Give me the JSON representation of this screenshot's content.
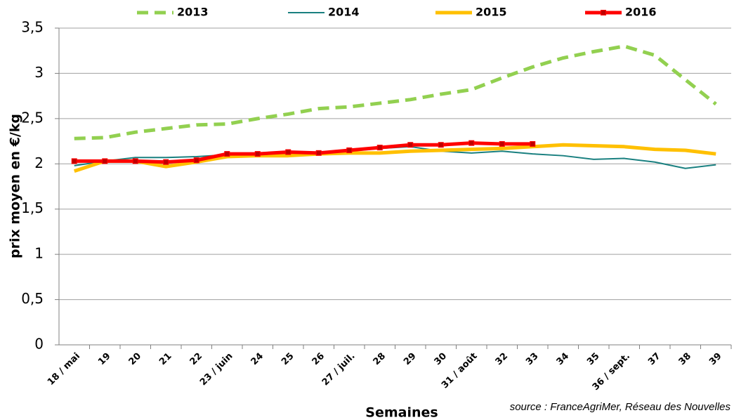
{
  "chart_data": {
    "type": "line",
    "y_label": "prix moyen en €/kg",
    "x_label": "Semaines",
    "source": "source : FranceAgriMer, Réseau des Nouvelles",
    "categories": [
      "18 / mai",
      "19",
      "20",
      "21",
      "22",
      "23 / juin",
      "24",
      "25",
      "26",
      "27 / juil.",
      "28",
      "29",
      "30",
      "31 / août",
      "32",
      "33",
      "34",
      "35",
      "36 / sept.",
      "37",
      "38",
      "39"
    ],
    "series": [
      {
        "name": "2013",
        "color": "#92d050",
        "dashed": true,
        "values": [
          2.28,
          2.29,
          2.35,
          2.39,
          2.43,
          2.44,
          2.5,
          2.55,
          2.61,
          2.63,
          2.67,
          2.71,
          2.77,
          2.82,
          2.95,
          3.07,
          3.17,
          3.24,
          3.3,
          3.2,
          2.93,
          2.66
        ]
      },
      {
        "name": "2014",
        "color": "#1a8080",
        "values": [
          1.98,
          2.03,
          2.07,
          2.07,
          2.08,
          2.1,
          2.11,
          2.11,
          2.12,
          2.14,
          2.17,
          2.19,
          2.14,
          2.12,
          2.14,
          2.11,
          2.09,
          2.05,
          2.06,
          2.02,
          1.95,
          1.99
        ]
      },
      {
        "name": "2015",
        "color": "#ffc000",
        "values": [
          1.92,
          2.03,
          2.03,
          1.97,
          2.02,
          2.08,
          2.09,
          2.09,
          2.11,
          2.12,
          2.12,
          2.14,
          2.15,
          2.16,
          2.17,
          2.19,
          2.21,
          2.2,
          2.19,
          2.16,
          2.15,
          2.11
        ]
      },
      {
        "name": "2016",
        "color": "#ff0000",
        "markers": true,
        "values": [
          2.03,
          2.03,
          2.03,
          2.02,
          2.04,
          2.11,
          2.11,
          2.13,
          2.12,
          2.15,
          2.18,
          2.21,
          2.21,
          2.23,
          2.22,
          2.22,
          null,
          null,
          null,
          null,
          null,
          null
        ]
      }
    ],
    "ylim": [
      0,
      3.5
    ],
    "yticks": [
      0,
      {
        "value": 0.5,
        "label": "0,5"
      },
      1,
      {
        "value": 1.5,
        "label": "1,5"
      },
      2,
      {
        "value": 2.5,
        "label": "2,5"
      },
      3,
      {
        "value": 3.5,
        "label": "3,5"
      }
    ],
    "grid": true,
    "legend": "top"
  }
}
